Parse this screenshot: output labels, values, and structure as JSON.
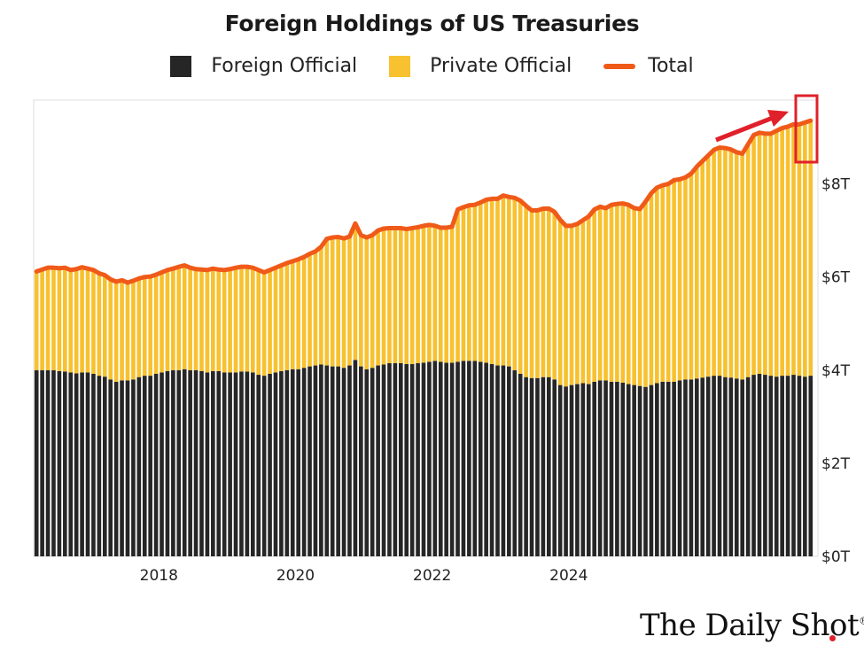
{
  "chart_data": {
    "type": "bar",
    "stacked": true,
    "title": "Foreign Holdings of US Treasuries",
    "xlabel": "",
    "ylabel": "",
    "x_start": "2016-03",
    "x_ticks": [
      "2018",
      "2020",
      "2022",
      "2024"
    ],
    "y_ticks": [
      "$0T",
      "$2T",
      "$4T",
      "$6T",
      "$8T"
    ],
    "ylim": [
      0,
      9.8
    ],
    "grid": false,
    "legend_position": "top",
    "colors": {
      "foreign_official": "#262626",
      "private_official": "#f7c12f",
      "total": "#f05a19",
      "annotation": "#e0202a"
    },
    "series": [
      {
        "name": "Foreign Official",
        "values": [
          4.0,
          4.0,
          4.0,
          4.0,
          3.98,
          3.97,
          3.95,
          3.93,
          3.95,
          3.95,
          3.92,
          3.88,
          3.86,
          3.8,
          3.75,
          3.78,
          3.78,
          3.8,
          3.85,
          3.88,
          3.88,
          3.92,
          3.95,
          3.98,
          4.0,
          4.0,
          4.02,
          4.0,
          4.0,
          3.98,
          3.95,
          3.98,
          3.98,
          3.95,
          3.95,
          3.95,
          3.97,
          3.97,
          3.95,
          3.9,
          3.88,
          3.92,
          3.95,
          3.98,
          4.0,
          4.02,
          4.02,
          4.05,
          4.08,
          4.1,
          4.12,
          4.1,
          4.08,
          4.08,
          4.05,
          4.1,
          4.22,
          4.08,
          4.02,
          4.05,
          4.1,
          4.12,
          4.15,
          4.15,
          4.15,
          4.13,
          4.13,
          4.15,
          4.16,
          4.18,
          4.2,
          4.18,
          4.16,
          4.16,
          4.18,
          4.2,
          4.2,
          4.2,
          4.18,
          4.16,
          4.13,
          4.1,
          4.1,
          4.08,
          4.0,
          3.92,
          3.85,
          3.83,
          3.83,
          3.85,
          3.85,
          3.8,
          3.68,
          3.65,
          3.68,
          3.7,
          3.72,
          3.7,
          3.75,
          3.78,
          3.78,
          3.75,
          3.75,
          3.73,
          3.7,
          3.68,
          3.66,
          3.64,
          3.68,
          3.72,
          3.75,
          3.75,
          3.75,
          3.78,
          3.8,
          3.8,
          3.82,
          3.84,
          3.86,
          3.88,
          3.88,
          3.85,
          3.84,
          3.82,
          3.8,
          3.85,
          3.9,
          3.92,
          3.9,
          3.88,
          3.86,
          3.88,
          3.88,
          3.9,
          3.88,
          3.86,
          3.88
        ]
      },
      {
        "name": "Private Official",
        "values": [
          2.12,
          2.16,
          2.2,
          2.2,
          2.21,
          2.23,
          2.2,
          2.24,
          2.26,
          2.23,
          2.23,
          2.2,
          2.18,
          2.15,
          2.15,
          2.15,
          2.1,
          2.12,
          2.12,
          2.12,
          2.13,
          2.13,
          2.15,
          2.17,
          2.18,
          2.22,
          2.23,
          2.2,
          2.17,
          2.18,
          2.2,
          2.2,
          2.18,
          2.2,
          2.22,
          2.25,
          2.25,
          2.25,
          2.25,
          2.25,
          2.22,
          2.23,
          2.25,
          2.27,
          2.3,
          2.32,
          2.36,
          2.38,
          2.42,
          2.45,
          2.53,
          2.72,
          2.77,
          2.78,
          2.78,
          2.77,
          2.93,
          2.82,
          2.83,
          2.85,
          2.9,
          2.92,
          2.9,
          2.9,
          2.9,
          2.9,
          2.92,
          2.92,
          2.94,
          2.94,
          2.9,
          2.88,
          2.9,
          2.92,
          3.27,
          3.3,
          3.34,
          3.35,
          3.42,
          3.5,
          3.55,
          3.58,
          3.65,
          3.64,
          3.7,
          3.72,
          3.68,
          3.6,
          3.6,
          3.62,
          3.62,
          3.6,
          3.55,
          3.45,
          3.42,
          3.44,
          3.5,
          3.6,
          3.7,
          3.73,
          3.7,
          3.8,
          3.82,
          3.85,
          3.85,
          3.8,
          3.8,
          3.98,
          4.12,
          4.2,
          4.22,
          4.25,
          4.33,
          4.32,
          4.34,
          4.42,
          4.55,
          4.65,
          4.75,
          4.85,
          4.9,
          4.92,
          4.9,
          4.86,
          4.85,
          5.0,
          5.15,
          5.18,
          5.18,
          5.2,
          5.28,
          5.3,
          5.35,
          5.38,
          5.4,
          5.46,
          5.48
        ]
      },
      {
        "name": "Total",
        "values": [
          6.12,
          6.16,
          6.2,
          6.2,
          6.19,
          6.2,
          6.15,
          6.17,
          6.21,
          6.18,
          6.15,
          6.08,
          6.04,
          5.95,
          5.9,
          5.93,
          5.88,
          5.92,
          5.97,
          6.0,
          6.01,
          6.05,
          6.1,
          6.15,
          6.18,
          6.22,
          6.25,
          6.2,
          6.17,
          6.16,
          6.15,
          6.18,
          6.16,
          6.15,
          6.17,
          6.2,
          6.22,
          6.22,
          6.2,
          6.15,
          6.1,
          6.15,
          6.2,
          6.25,
          6.3,
          6.34,
          6.38,
          6.43,
          6.5,
          6.55,
          6.65,
          6.82,
          6.85,
          6.86,
          6.83,
          6.87,
          7.15,
          6.9,
          6.85,
          6.9,
          7.0,
          7.04,
          7.05,
          7.05,
          7.05,
          7.03,
          7.05,
          7.07,
          7.1,
          7.12,
          7.1,
          7.06,
          7.06,
          7.08,
          7.45,
          7.5,
          7.54,
          7.55,
          7.6,
          7.66,
          7.68,
          7.68,
          7.75,
          7.72,
          7.7,
          7.64,
          7.53,
          7.43,
          7.43,
          7.47,
          7.47,
          7.4,
          7.23,
          7.1,
          7.1,
          7.14,
          7.22,
          7.3,
          7.45,
          7.51,
          7.48,
          7.55,
          7.57,
          7.58,
          7.55,
          7.48,
          7.46,
          7.62,
          7.8,
          7.92,
          7.97,
          8.0,
          8.08,
          8.1,
          8.14,
          8.22,
          8.37,
          8.49,
          8.61,
          8.73,
          8.78,
          8.77,
          8.74,
          8.68,
          8.65,
          8.85,
          9.05,
          9.1,
          9.08,
          9.08,
          9.14,
          9.2,
          9.23,
          9.28,
          9.28,
          9.32,
          9.36
        ]
      }
    ]
  },
  "brand": {
    "text": "The Daily Shot",
    "mark": "®"
  }
}
